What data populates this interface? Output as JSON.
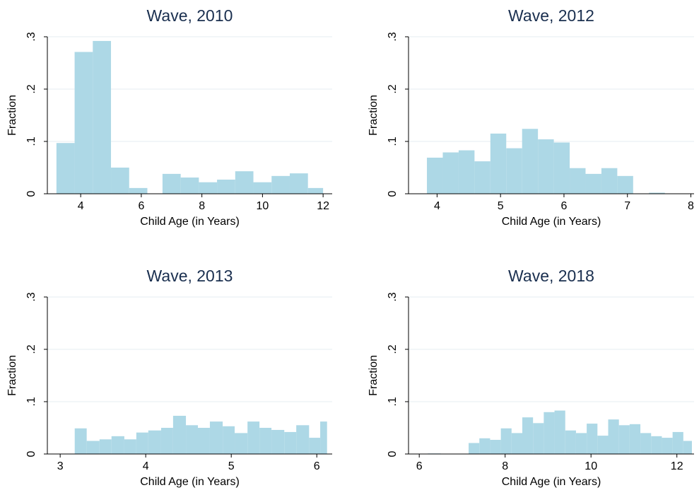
{
  "colors": {
    "bar": "#add8e6",
    "title": "#1a2f4f",
    "grid": "#e6eef2"
  },
  "chart_data": [
    {
      "type": "bar",
      "title": "Wave, 2010",
      "xlabel": "Child Age (in Years)",
      "ylabel": "Fraction",
      "xlim": [
        2.9,
        12.3
      ],
      "ylim": [
        0,
        0.3
      ],
      "xticks": [
        {
          "v": 4,
          "label": "4"
        },
        {
          "v": 6,
          "label": "6"
        },
        {
          "v": 8,
          "label": "8"
        },
        {
          "v": 10,
          "label": "10"
        },
        {
          "v": 12,
          "label": "12"
        }
      ],
      "yticks": [
        {
          "v": 0,
          "label": "0"
        },
        {
          "v": 0.1,
          "label": ".1"
        },
        {
          "v": 0.2,
          "label": ".2"
        },
        {
          "v": 0.3,
          "label": ".3"
        }
      ],
      "grid": true,
      "bins": [
        {
          "x0": 3.2,
          "x1": 3.8,
          "y": 0.097
        },
        {
          "x0": 3.8,
          "x1": 4.4,
          "y": 0.271
        },
        {
          "x0": 4.4,
          "x1": 5.0,
          "y": 0.292
        },
        {
          "x0": 5.0,
          "x1": 5.6,
          "y": 0.05
        },
        {
          "x0": 5.6,
          "x1": 6.2,
          "y": 0.011
        },
        {
          "x0": 6.7,
          "x1": 7.3,
          "y": 0.038
        },
        {
          "x0": 7.3,
          "x1": 7.9,
          "y": 0.031
        },
        {
          "x0": 7.9,
          "x1": 8.5,
          "y": 0.022
        },
        {
          "x0": 8.5,
          "x1": 9.1,
          "y": 0.027
        },
        {
          "x0": 9.1,
          "x1": 9.7,
          "y": 0.043
        },
        {
          "x0": 9.7,
          "x1": 10.3,
          "y": 0.022
        },
        {
          "x0": 10.3,
          "x1": 10.9,
          "y": 0.034
        },
        {
          "x0": 10.9,
          "x1": 11.5,
          "y": 0.039
        },
        {
          "x0": 11.5,
          "x1": 12.0,
          "y": 0.011
        }
      ]
    },
    {
      "type": "bar",
      "title": "Wave, 2012",
      "xlabel": "Child Age (in Years)",
      "ylabel": "Fraction",
      "xlim": [
        3.55,
        8.05
      ],
      "ylim": [
        0,
        0.3
      ],
      "xticks": [
        {
          "v": 4,
          "label": "4"
        },
        {
          "v": 5,
          "label": "5"
        },
        {
          "v": 6,
          "label": "6"
        },
        {
          "v": 7,
          "label": "7"
        },
        {
          "v": 8,
          "label": "8"
        }
      ],
      "yticks": [
        {
          "v": 0,
          "label": "0"
        },
        {
          "v": 0.1,
          "label": ".1"
        },
        {
          "v": 0.2,
          "label": ".2"
        },
        {
          "v": 0.3,
          "label": ".3"
        }
      ],
      "grid": true,
      "bins": [
        {
          "x0": 3.84,
          "x1": 4.09,
          "y": 0.069
        },
        {
          "x0": 4.09,
          "x1": 4.34,
          "y": 0.079
        },
        {
          "x0": 4.34,
          "x1": 4.59,
          "y": 0.083
        },
        {
          "x0": 4.59,
          "x1": 4.84,
          "y": 0.062
        },
        {
          "x0": 4.84,
          "x1": 5.09,
          "y": 0.115
        },
        {
          "x0": 5.09,
          "x1": 5.34,
          "y": 0.087
        },
        {
          "x0": 5.34,
          "x1": 5.59,
          "y": 0.124
        },
        {
          "x0": 5.59,
          "x1": 5.84,
          "y": 0.104
        },
        {
          "x0": 5.84,
          "x1": 6.09,
          "y": 0.098
        },
        {
          "x0": 6.09,
          "x1": 6.34,
          "y": 0.049
        },
        {
          "x0": 6.34,
          "x1": 6.59,
          "y": 0.038
        },
        {
          "x0": 6.59,
          "x1": 6.84,
          "y": 0.049
        },
        {
          "x0": 6.84,
          "x1": 7.09,
          "y": 0.034
        },
        {
          "x0": 7.34,
          "x1": 7.59,
          "y": 0.002
        }
      ]
    },
    {
      "type": "bar",
      "title": "Wave, 2013",
      "xlabel": "Child Age (in Years)",
      "ylabel": "Fraction",
      "xlim": [
        2.85,
        6.18
      ],
      "ylim": [
        0,
        0.3
      ],
      "xticks": [
        {
          "v": 3,
          "label": "3"
        },
        {
          "v": 4,
          "label": "4"
        },
        {
          "v": 5,
          "label": "5"
        },
        {
          "v": 6,
          "label": "6"
        }
      ],
      "yticks": [
        {
          "v": 0,
          "label": "0"
        },
        {
          "v": 0.1,
          "label": ".1"
        },
        {
          "v": 0.2,
          "label": ".2"
        },
        {
          "v": 0.3,
          "label": ".3"
        }
      ],
      "grid": true,
      "bins": [
        {
          "x0": 3.17,
          "x1": 3.31,
          "y": 0.049
        },
        {
          "x0": 3.31,
          "x1": 3.46,
          "y": 0.025
        },
        {
          "x0": 3.46,
          "x1": 3.6,
          "y": 0.028
        },
        {
          "x0": 3.6,
          "x1": 3.75,
          "y": 0.034
        },
        {
          "x0": 3.75,
          "x1": 3.89,
          "y": 0.028
        },
        {
          "x0": 3.89,
          "x1": 4.03,
          "y": 0.041
        },
        {
          "x0": 4.03,
          "x1": 4.18,
          "y": 0.045
        },
        {
          "x0": 4.18,
          "x1": 4.32,
          "y": 0.05
        },
        {
          "x0": 4.32,
          "x1": 4.47,
          "y": 0.073
        },
        {
          "x0": 4.47,
          "x1": 4.61,
          "y": 0.055
        },
        {
          "x0": 4.61,
          "x1": 4.75,
          "y": 0.05
        },
        {
          "x0": 4.75,
          "x1": 4.9,
          "y": 0.062
        },
        {
          "x0": 4.9,
          "x1": 5.04,
          "y": 0.053
        },
        {
          "x0": 5.04,
          "x1": 5.19,
          "y": 0.04
        },
        {
          "x0": 5.19,
          "x1": 5.33,
          "y": 0.062
        },
        {
          "x0": 5.33,
          "x1": 5.47,
          "y": 0.05
        },
        {
          "x0": 5.47,
          "x1": 5.62,
          "y": 0.046
        },
        {
          "x0": 5.62,
          "x1": 5.76,
          "y": 0.042
        },
        {
          "x0": 5.76,
          "x1": 5.91,
          "y": 0.055
        },
        {
          "x0": 5.91,
          "x1": 6.04,
          "y": 0.031
        },
        {
          "x0": 6.04,
          "x1": 6.12,
          "y": 0.062
        }
      ]
    },
    {
      "type": "bar",
      "title": "Wave, 2018",
      "xlabel": "Child Age (in Years)",
      "ylabel": "Fraction",
      "xlim": [
        5.75,
        12.4
      ],
      "ylim": [
        0,
        0.3
      ],
      "xticks": [
        {
          "v": 6,
          "label": "6"
        },
        {
          "v": 8,
          "label": "8"
        },
        {
          "v": 10,
          "label": "10"
        },
        {
          "v": 12,
          "label": "12"
        }
      ],
      "yticks": [
        {
          "v": 0,
          "label": "0"
        },
        {
          "v": 0.1,
          "label": ".1"
        },
        {
          "v": 0.2,
          "label": ".2"
        },
        {
          "v": 0.3,
          "label": ".3"
        }
      ],
      "grid": true,
      "bins": [
        {
          "x0": 6.2,
          "x1": 6.5,
          "y": 0.001
        },
        {
          "x0": 7.15,
          "x1": 7.4,
          "y": 0.021
        },
        {
          "x0": 7.4,
          "x1": 7.65,
          "y": 0.03
        },
        {
          "x0": 7.65,
          "x1": 7.9,
          "y": 0.027
        },
        {
          "x0": 7.9,
          "x1": 8.15,
          "y": 0.049
        },
        {
          "x0": 8.15,
          "x1": 8.4,
          "y": 0.04
        },
        {
          "x0": 8.4,
          "x1": 8.65,
          "y": 0.07
        },
        {
          "x0": 8.65,
          "x1": 8.9,
          "y": 0.059
        },
        {
          "x0": 8.9,
          "x1": 9.15,
          "y": 0.08
        },
        {
          "x0": 9.15,
          "x1": 9.4,
          "y": 0.083
        },
        {
          "x0": 9.4,
          "x1": 9.65,
          "y": 0.045
        },
        {
          "x0": 9.65,
          "x1": 9.9,
          "y": 0.04
        },
        {
          "x0": 9.9,
          "x1": 10.15,
          "y": 0.058
        },
        {
          "x0": 10.15,
          "x1": 10.4,
          "y": 0.035
        },
        {
          "x0": 10.4,
          "x1": 10.65,
          "y": 0.066
        },
        {
          "x0": 10.65,
          "x1": 10.9,
          "y": 0.055
        },
        {
          "x0": 10.9,
          "x1": 11.15,
          "y": 0.057
        },
        {
          "x0": 11.15,
          "x1": 11.4,
          "y": 0.04
        },
        {
          "x0": 11.4,
          "x1": 11.65,
          "y": 0.034
        },
        {
          "x0": 11.65,
          "x1": 11.9,
          "y": 0.031
        },
        {
          "x0": 11.9,
          "x1": 12.15,
          "y": 0.042
        },
        {
          "x0": 12.15,
          "x1": 12.35,
          "y": 0.025
        }
      ]
    }
  ]
}
